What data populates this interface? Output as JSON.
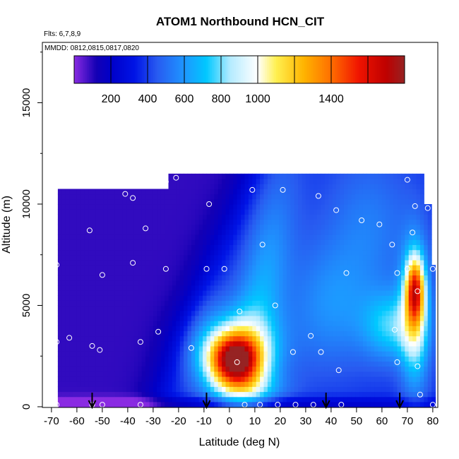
{
  "chart_data": {
    "type": "heatmap",
    "title": "ATOM1 Northbound HCN_CIT",
    "subtitle_flights": "Flts: 6,7,8,9",
    "subtitle_dates": "MMDD: 0812,0815,0817,0820",
    "xlabel": "Latitude (deg N)",
    "ylabel": "Altitude (m)",
    "xlim": [
      -70,
      80
    ],
    "ylim": [
      0,
      17500
    ],
    "x_ticks": [
      "-70",
      "-55",
      "-40",
      "-25",
      "-10",
      "0",
      "10",
      "20",
      "30",
      "40",
      "50",
      "60",
      "70",
      "80"
    ],
    "x_tick_values": [
      -70,
      -55,
      -40,
      -25,
      -10,
      0,
      10,
      20,
      30,
      40,
      50,
      60,
      70,
      80
    ],
    "x_tick_labels": [
      "-70",
      "-60",
      "-50",
      "-40",
      "-30",
      "-20",
      "-10",
      "0",
      "10",
      "20",
      "30",
      "40",
      "50",
      "60",
      "70",
      "80"
    ],
    "x_tick_label_values": [
      -70,
      -60,
      -50,
      -40,
      -30,
      -20,
      -10,
      0,
      10,
      20,
      30,
      40,
      50,
      60,
      70,
      80
    ],
    "y_ticks": [
      "0",
      "5000",
      "10000",
      "15000"
    ],
    "y_tick_values": [
      0,
      5000,
      10000,
      15000
    ],
    "colorbar": {
      "range": [
        0,
        1800
      ],
      "labels": [
        "200",
        "400",
        "600",
        "800",
        "1000",
        "1400"
      ],
      "label_values": [
        200,
        400,
        600,
        800,
        1000,
        1400
      ],
      "colors": [
        "#8a2be2",
        "#0000a0",
        "#0000dd",
        "#3366ff",
        "#2aa0ff",
        "#00ccff",
        "#ffffff",
        "#ffee33",
        "#ff9900",
        "#ff3300",
        "#cc0000",
        "#992222"
      ]
    },
    "arrows_latitude": [
      -54,
      -9,
      38,
      67
    ],
    "sample_points": [
      [
        -68,
        11000
      ],
      [
        -68,
        7000
      ],
      [
        -68,
        3200
      ],
      [
        -68,
        100
      ],
      [
        -63,
        3400
      ],
      [
        -55,
        8700
      ],
      [
        -54,
        3000
      ],
      [
        -54,
        100
      ],
      [
        -50,
        6500
      ],
      [
        -51,
        2800
      ],
      [
        -50,
        100
      ],
      [
        -41,
        10500
      ],
      [
        -38,
        7100
      ],
      [
        -38,
        10300
      ],
      [
        -35,
        3200
      ],
      [
        -35,
        100
      ],
      [
        -33,
        8800
      ],
      [
        -30,
        11100
      ],
      [
        -28,
        3700
      ],
      [
        -25,
        11100
      ],
      [
        -25,
        6800
      ],
      [
        -21,
        11300
      ],
      [
        -15,
        2900
      ],
      [
        -9,
        6800
      ],
      [
        -8,
        10000
      ],
      [
        -2,
        6800
      ],
      [
        3,
        2200
      ],
      [
        4,
        4700
      ],
      [
        6,
        100
      ],
      [
        9,
        10700
      ],
      [
        12,
        100
      ],
      [
        13,
        8000
      ],
      [
        18,
        5000
      ],
      [
        19,
        100
      ],
      [
        21,
        10700
      ],
      [
        25,
        2700
      ],
      [
        26,
        100
      ],
      [
        32,
        3500
      ],
      [
        33,
        100
      ],
      [
        35,
        10400
      ],
      [
        36,
        2700
      ],
      [
        42,
        9700
      ],
      [
        43,
        1800
      ],
      [
        44,
        100
      ],
      [
        46,
        6600
      ],
      [
        52,
        9200
      ],
      [
        59,
        9000
      ],
      [
        64,
        8000
      ],
      [
        66,
        6600
      ],
      [
        65,
        3800
      ],
      [
        66,
        2200
      ],
      [
        70,
        11200
      ],
      [
        70,
        6800
      ],
      [
        72,
        8600
      ],
      [
        73,
        9900
      ],
      [
        74,
        5700
      ],
      [
        74,
        2000
      ],
      [
        75,
        600
      ],
      [
        78,
        9800
      ],
      [
        80,
        6800
      ],
      [
        80,
        100
      ]
    ],
    "hotspots": [
      {
        "lat": 2,
        "alt": 2300,
        "value": 1450
      },
      {
        "lat": 73,
        "alt": 5800,
        "value": 1650
      }
    ]
  }
}
